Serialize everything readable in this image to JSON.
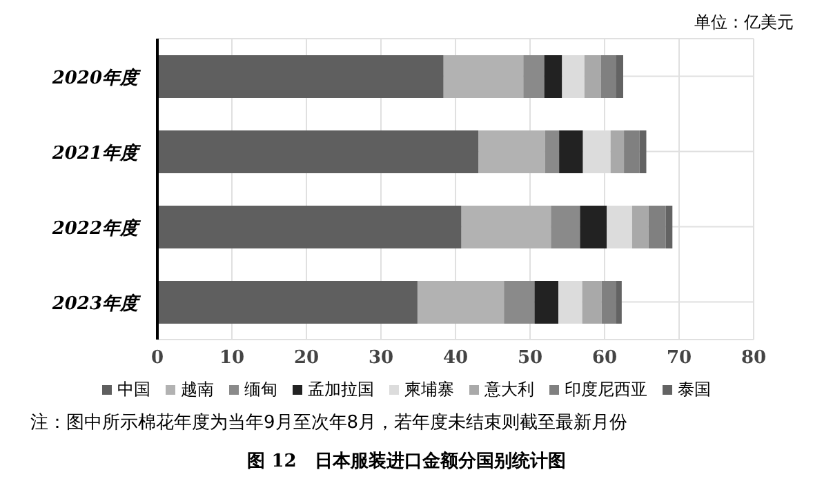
{
  "chart_data": {
    "type": "bar",
    "orientation": "horizontal",
    "stacked": true,
    "title": "图 12　日本服装进口金额分国别统计图",
    "categories": [
      "2020年度",
      "2021年度",
      "2022年度",
      "2023年度"
    ],
    "series": [
      {
        "name": "中国",
        "color": "#5f5f5f",
        "values": [
          38.4,
          43.1,
          40.8,
          34.9
        ]
      },
      {
        "name": "越南",
        "color": "#b2b2b2",
        "values": [
          10.7,
          8.9,
          12.0,
          11.6
        ]
      },
      {
        "name": "缅甸",
        "color": "#8a8a8a",
        "values": [
          2.8,
          1.9,
          3.9,
          4.1
        ]
      },
      {
        "name": "孟加拉国",
        "color": "#222222",
        "values": [
          2.4,
          3.2,
          3.6,
          3.2
        ]
      },
      {
        "name": "柬埔寨",
        "color": "#dcdcdc",
        "values": [
          3.0,
          3.7,
          3.4,
          3.2
        ]
      },
      {
        "name": "意大利",
        "color": "#a9a9a9",
        "values": [
          2.2,
          1.8,
          2.2,
          2.6
        ]
      },
      {
        "name": "印度尼西亚",
        "color": "#808080",
        "values": [
          2.0,
          2.1,
          2.3,
          1.9
        ]
      },
      {
        "name": "泰国",
        "color": "#636363",
        "values": [
          1.0,
          0.9,
          0.9,
          0.8
        ]
      }
    ],
    "xlim": [
      0,
      80
    ],
    "xticks": [
      0,
      10,
      20,
      30,
      40,
      50,
      60,
      70,
      80
    ],
    "grid": true,
    "legend": "bottom",
    "annotations": [
      "单位：亿美元",
      "注：图中所示棉花年度为当年9月至次年8月，若年度未结束则截至最新月份"
    ]
  }
}
